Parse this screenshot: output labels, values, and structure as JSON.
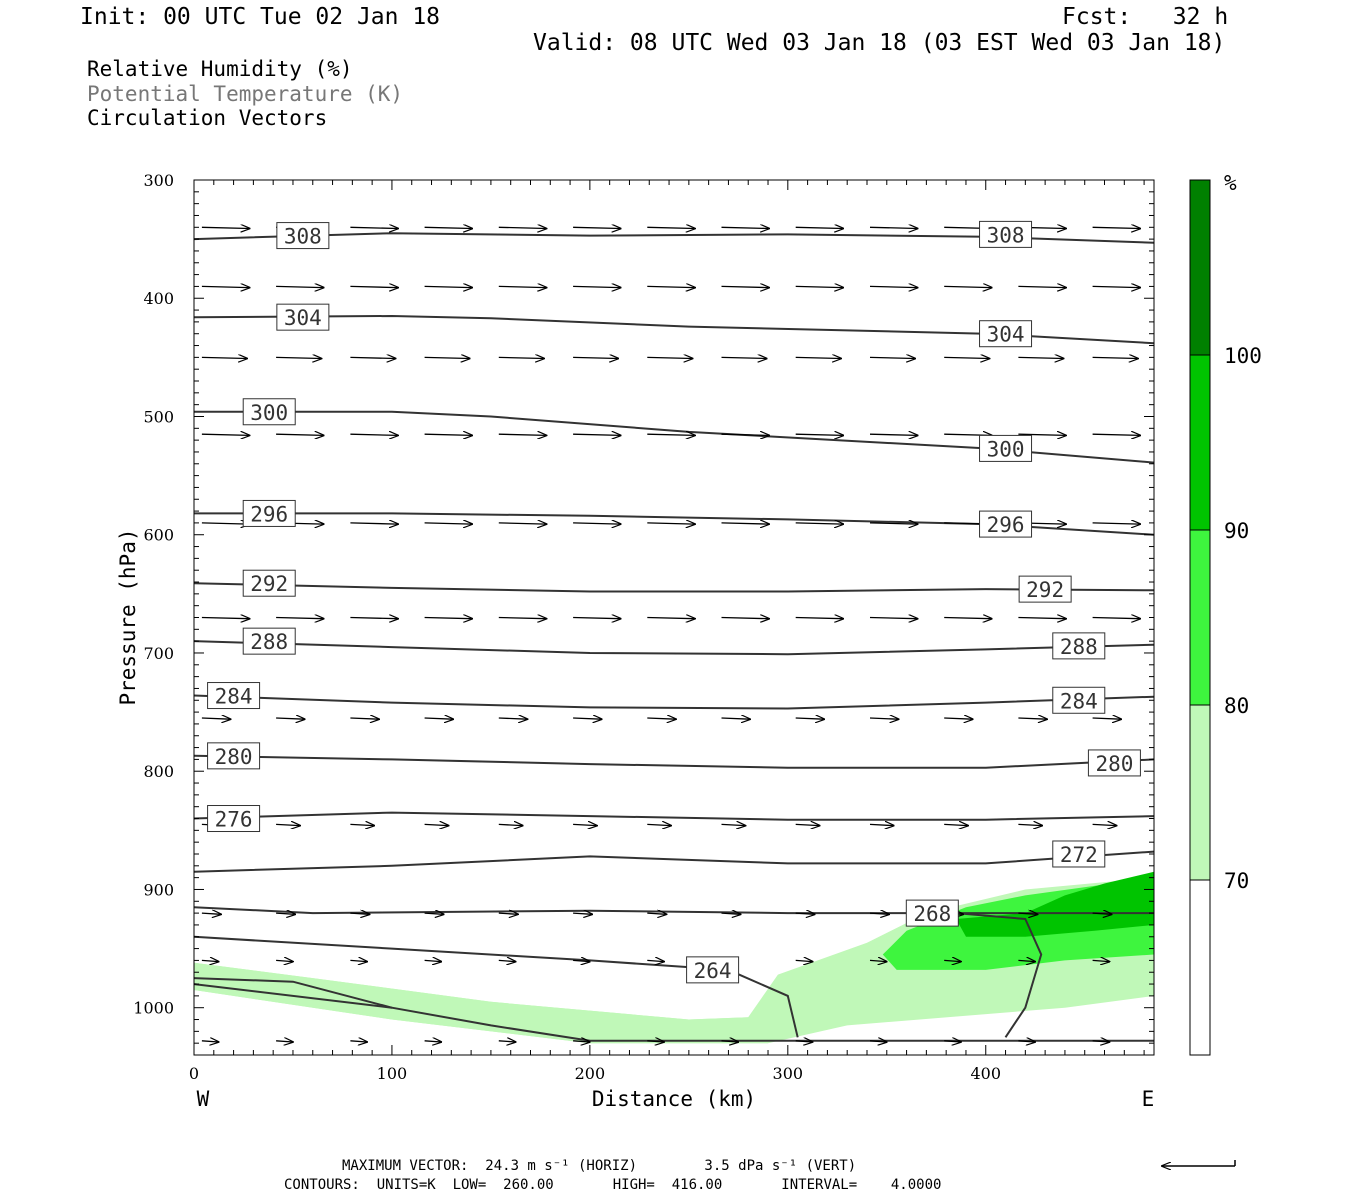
{
  "header": {
    "init": "Init: 00 UTC Tue 02 Jan 18",
    "fcst": "Fcst:   32 h",
    "valid": "Valid: 08 UTC Wed 03 Jan 18 (03 EST Wed 03 Jan 18)"
  },
  "legend": {
    "line1": "Relative Humidity (%)",
    "line2": "Potential Temperature (K)",
    "line3": "Circulation Vectors"
  },
  "footer": {
    "line1": "MAXIMUM VECTOR:  24.3 m s⁻¹ (HORIZ)        3.5 dPa s⁻¹ (VERT)",
    "line2": "CONTOURS:  UNITS=K  LOW=  260.00       HIGH=  416.00       INTERVAL=    4.0000"
  },
  "colors": {
    "rh70": "#c0f8b8",
    "rh80": "#3ef53e",
    "rh90": "#00c400",
    "rh100": "#008000"
  },
  "chart_data": {
    "type": "cross-section",
    "xlabel": "Distance (km)",
    "ylabel": "Pressure (hPa)",
    "xlim": [
      0,
      485
    ],
    "ylim": [
      1040,
      300
    ],
    "x_ticks": [
      0,
      100,
      200,
      300,
      400
    ],
    "y_ticks": [
      300,
      400,
      500,
      600,
      700,
      800,
      900,
      1000
    ],
    "x_end_labels": {
      "left": "W",
      "right": "E"
    },
    "colorbar": {
      "unit": "%",
      "levels": [
        70,
        80,
        90,
        100
      ],
      "colors": [
        "#c0f8b8",
        "#3ef53e",
        "#00c400",
        "#008000"
      ]
    },
    "theta_contours": [
      {
        "label": "308",
        "x": [
          0,
          100,
          200,
          300,
          400,
          485
        ],
        "p": [
          350,
          345,
          347,
          346,
          348,
          353
        ],
        "labels_at": [
          [
            55,
            347
          ],
          [
            410,
            346
          ]
        ]
      },
      {
        "label": "304",
        "x": [
          0,
          100,
          150,
          250,
          400,
          485
        ],
        "p": [
          416,
          415,
          417,
          424,
          430,
          438
        ],
        "labels_at": [
          [
            55,
            416
          ],
          [
            410,
            430
          ]
        ]
      },
      {
        "label": "300",
        "x": [
          0,
          100,
          150,
          250,
          400,
          485
        ],
        "p": [
          496,
          496,
          500,
          513,
          527,
          539
        ],
        "labels_at": [
          [
            38,
            496
          ],
          [
            410,
            527
          ]
        ]
      },
      {
        "label": "296",
        "x": [
          0,
          100,
          200,
          300,
          400,
          485
        ],
        "p": [
          582,
          582,
          584,
          587,
          591,
          600
        ],
        "labels_at": [
          [
            38,
            582
          ],
          [
            410,
            591
          ]
        ]
      },
      {
        "label": "292",
        "x": [
          0,
          100,
          200,
          300,
          400,
          485
        ],
        "p": [
          641,
          645,
          648,
          648,
          646,
          647
        ],
        "labels_at": [
          [
            38,
            641
          ],
          [
            430,
            646
          ]
        ]
      },
      {
        "label": "288",
        "x": [
          0,
          100,
          200,
          300,
          400,
          485
        ],
        "p": [
          690,
          695,
          700,
          701,
          697,
          693
        ],
        "labels_at": [
          [
            38,
            690
          ],
          [
            447,
            694
          ]
        ]
      },
      {
        "label": "284",
        "x": [
          0,
          100,
          200,
          300,
          400,
          485
        ],
        "p": [
          736,
          742,
          746,
          747,
          742,
          737
        ],
        "labels_at": [
          [
            20,
            736
          ],
          [
            447,
            740
          ]
        ]
      },
      {
        "label": "280",
        "x": [
          0,
          100,
          200,
          300,
          400,
          485
        ],
        "p": [
          787,
          790,
          794,
          797,
          797,
          790
        ],
        "labels_at": [
          [
            20,
            787
          ],
          [
            465,
            793
          ]
        ]
      },
      {
        "label": "276",
        "x": [
          0,
          100,
          200,
          300,
          400,
          485
        ],
        "p": [
          840,
          835,
          838,
          841,
          841,
          838
        ],
        "labels_at": [
          [
            20,
            840
          ]
        ]
      },
      {
        "label": "272",
        "x": [
          0,
          100,
          200,
          300,
          400,
          485
        ],
        "p": [
          885,
          880,
          872,
          878,
          878,
          868
        ],
        "labels_at": [
          [
            447,
            870
          ]
        ]
      },
      {
        "label": "268",
        "x": [
          0,
          60,
          200,
          300,
          400,
          485
        ],
        "p": [
          915,
          920,
          918,
          920,
          920,
          920
        ],
        "labels_at": [
          [
            373,
            920
          ]
        ]
      },
      {
        "label": "264",
        "x": [
          0,
          100,
          200,
          270,
          300,
          305
        ],
        "p": [
          940,
          950,
          960,
          968,
          990,
          1025
        ],
        "labels_at": [
          [
            262,
            968
          ]
        ]
      }
    ],
    "rh_regions": [
      {
        "level": 70,
        "note": "near-surface moist layer west, deep moist wedge east"
      },
      {
        "level": 80,
        "note": "east, 880-975 hPa"
      },
      {
        "level": 90,
        "note": "east, 880-940 hPa"
      }
    ],
    "vectors": {
      "description": "Circulation vectors predominantly westerly (left-to-right) at all levels, weakening toward the surface",
      "max_horizontal": "24.3 m s⁻¹",
      "max_vertical": "3.5 dPa s⁻¹"
    }
  }
}
